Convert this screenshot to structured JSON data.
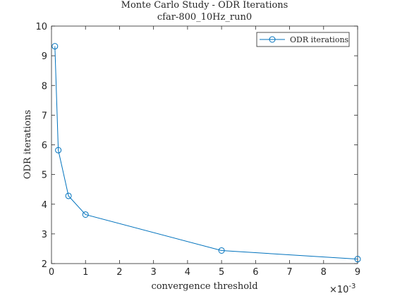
{
  "chart_data": {
    "type": "line",
    "title": "Monte Carlo Study - ODR Iterations",
    "subtitle": "cfar-800_10Hz_run0",
    "xlabel": "convergence threshold",
    "ylabel": "ODR iterations",
    "x_exponent_prefix": "×10",
    "x_exponent_power": "-3",
    "x_scale": 0.001,
    "xlim": [
      0,
      0.009
    ],
    "ylim": [
      2,
      10
    ],
    "xticks": [
      0,
      0.001,
      0.002,
      0.003,
      0.004,
      0.005,
      0.006,
      0.007,
      0.008,
      0.009
    ],
    "xtick_labels": [
      "0",
      "1",
      "2",
      "3",
      "4",
      "5",
      "6",
      "7",
      "8",
      "9"
    ],
    "yticks": [
      2,
      3,
      4,
      5,
      6,
      7,
      8,
      9,
      10
    ],
    "ytick_labels": [
      "2",
      "3",
      "4",
      "5",
      "6",
      "7",
      "8",
      "9",
      "10"
    ],
    "grid": false,
    "legend_position": "top-right",
    "series": [
      {
        "name": "ODR iterations",
        "color": "#0072BD",
        "marker": "circle",
        "x": [
          0.0001,
          0.0002,
          0.0005,
          0.001,
          0.005,
          0.009
        ],
        "y": [
          9.32,
          5.82,
          4.28,
          3.65,
          2.44,
          2.15
        ]
      }
    ]
  }
}
